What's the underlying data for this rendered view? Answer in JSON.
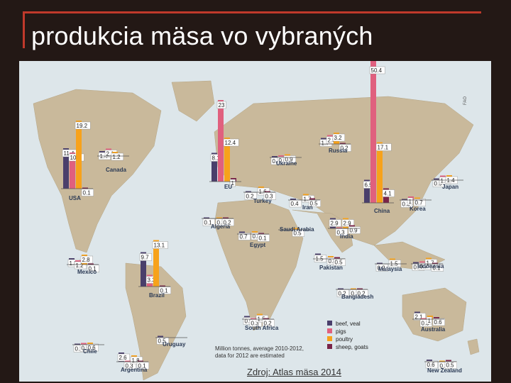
{
  "slide": {
    "title": "produkcia mäsa vo vybraných",
    "source": "Zdroj: Atlas mäsa 2014",
    "fao": "FAO"
  },
  "chart_data": {
    "type": "bar",
    "subtype": "map-grouped-bars",
    "note": "Million tonnes, average 2010-2012, data for 2012 are estimated",
    "legend": [
      "beef, veal",
      "pigs",
      "poultry",
      "sheep, goats"
    ],
    "colors": {
      "beef, veal": "#4a3f6b",
      "pigs": "#e0607e",
      "poultry": "#f7a21b",
      "sheep, goats": "#7a2448",
      "label_box": "#ffffff",
      "map_land": "#c9b99b",
      "map_sea": "#dde6ea"
    },
    "countries": [
      {
        "name": "USA",
        "values": [
          11.4,
          10.2,
          19.2,
          0.1
        ]
      },
      {
        "name": "Canada",
        "values": [
          1.4,
          2.1,
          1.2,
          null
        ]
      },
      {
        "name": "Mexico",
        "values": [
          1.8,
          1.2,
          2.8,
          0.1
        ]
      },
      {
        "name": "Brazil",
        "values": [
          9.7,
          3.3,
          13.1,
          0.1
        ]
      },
      {
        "name": "Argentina",
        "values": [
          2.6,
          0.3,
          1.8,
          0.1
        ]
      },
      {
        "name": "Chile",
        "values": [
          0.2,
          0.5,
          0.6,
          null
        ]
      },
      {
        "name": "Uruguay",
        "values": [
          0.5,
          null,
          null,
          null
        ]
      },
      {
        "name": "EU",
        "values": [
          8.1,
          23.0,
          12.4,
          1.0
        ]
      },
      {
        "name": "Ukraine",
        "values": [
          0.4,
          0.6,
          0.9,
          null
        ]
      },
      {
        "name": "Russia",
        "values": [
          1.7,
          2.5,
          3.2,
          0.2
        ]
      },
      {
        "name": "Turkey",
        "values": [
          0.2,
          null,
          1.6,
          0.3
        ]
      },
      {
        "name": "Algeria",
        "values": [
          0.1,
          null,
          0.3,
          0.2
        ]
      },
      {
        "name": "Egypt",
        "values": [
          0.7,
          null,
          0.8,
          0.1
        ]
      },
      {
        "name": "Saudi Arabia",
        "values": [
          null,
          null,
          0.5,
          null
        ]
      },
      {
        "name": "Iran",
        "values": [
          0.4,
          null,
          1.7,
          0.5
        ]
      },
      {
        "name": "China",
        "values": [
          6.5,
          50.4,
          17.1,
          4.1
        ]
      },
      {
        "name": "Korea",
        "values": [
          0.3,
          1.0,
          0.7,
          null
        ]
      },
      {
        "name": "Japan",
        "values": [
          0.5,
          1.3,
          1.4,
          null
        ]
      },
      {
        "name": "India",
        "values": [
          2.9,
          0.3,
          2.9,
          0.9
        ]
      },
      {
        "name": "Pakistan",
        "values": [
          1.5,
          null,
          0.8,
          0.5
        ]
      },
      {
        "name": "Bangladesh",
        "values": [
          0.2,
          null,
          0.2,
          0.2
        ]
      },
      {
        "name": "Malaysia",
        "values": [
          0.2,
          null,
          1.5,
          null
        ]
      },
      {
        "name": "Indonesia",
        "values": [
          0.5,
          0.7,
          1.7,
          0.1
        ]
      },
      {
        "name": "South Africa",
        "values": [
          0.9,
          0.3,
          1.5,
          0.2
        ]
      },
      {
        "name": "Australia",
        "values": [
          2.1,
          0.3,
          1.0,
          0.6
        ]
      },
      {
        "name": "New Zealand",
        "values": [
          0.6,
          null,
          0.2,
          0.5
        ]
      }
    ]
  }
}
